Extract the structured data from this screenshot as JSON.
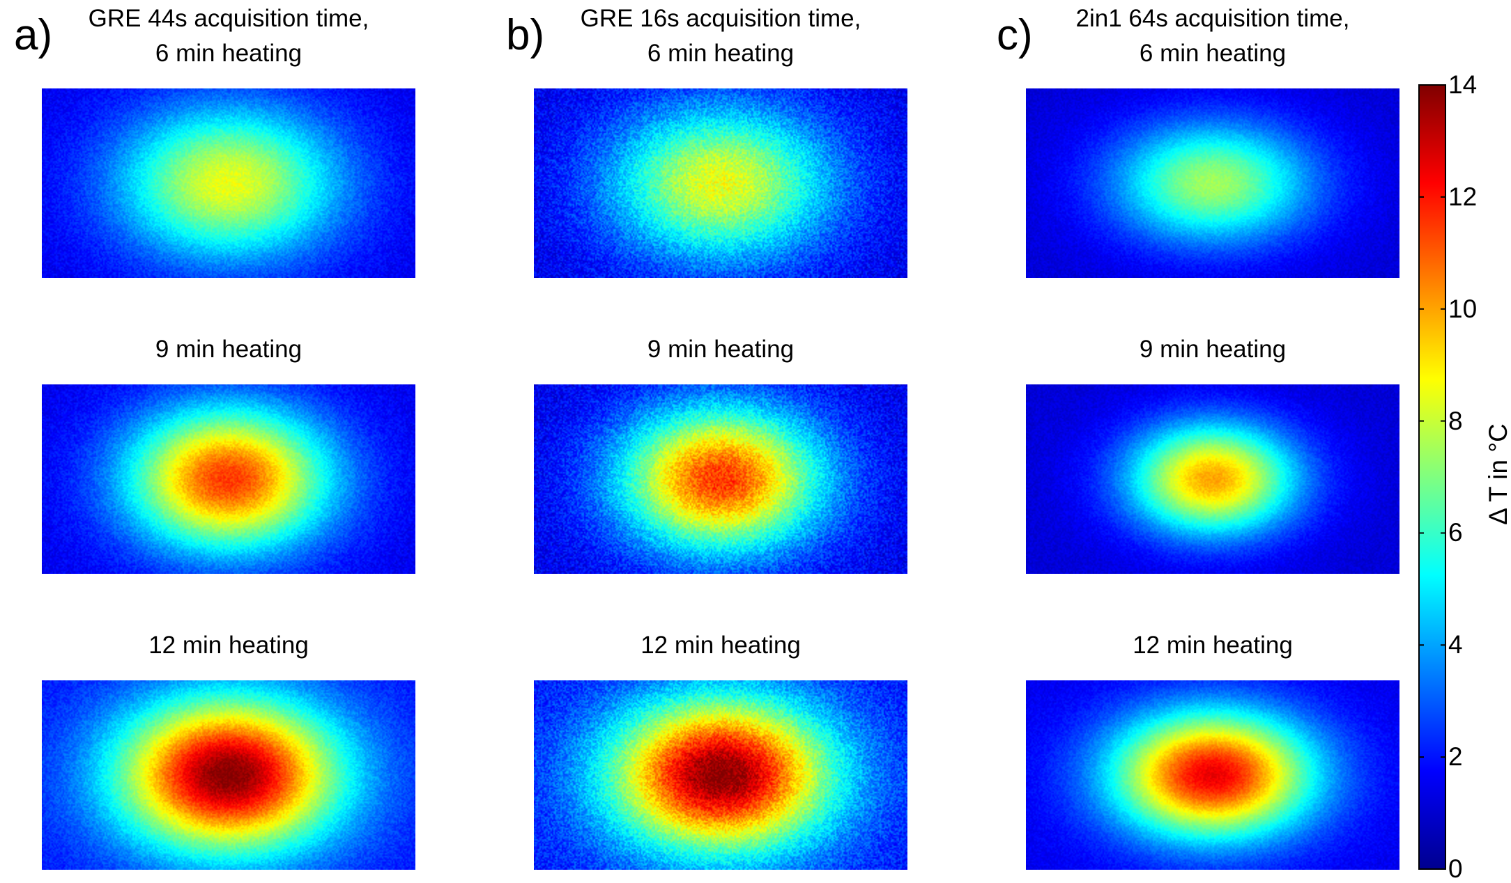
{
  "panels": [
    {
      "letter": "a)",
      "title_line1": "GRE 44s acquisition time,",
      "title_line2": "6 min heating",
      "row2_title": "9 min heating",
      "row3_title": "12 min heating"
    },
    {
      "letter": "b)",
      "title_line1": "GRE 16s acquisition time,",
      "title_line2": "6 min heating",
      "row2_title": "9 min heating",
      "row3_title": "12 min heating"
    },
    {
      "letter": "c)",
      "title_line1": "2in1 64s acquisition time,",
      "title_line2": "6 min heating",
      "row2_title": "9 min heating",
      "row3_title": "12 min heating"
    }
  ],
  "chart_data": {
    "type": "heatmap",
    "colormap": "jet",
    "colorbar": {
      "label": "Δ T in °C",
      "range": [
        0,
        14
      ],
      "ticks": [
        0,
        2,
        4,
        6,
        8,
        10,
        12,
        14
      ],
      "tick_labels": [
        "0",
        "2",
        "4",
        "6",
        "8",
        "10",
        "12",
        "14"
      ]
    },
    "maps": [
      {
        "method": "GRE 44s",
        "heating": "6 min heating",
        "peak_delta_T": 8.5,
        "edge_delta_T": 1.5,
        "spread_x": 0.55,
        "spread_y": 0.75,
        "noise": 0.5
      },
      {
        "method": "GRE 44s",
        "heating": "9 min heating",
        "peak_delta_T": 11.5,
        "edge_delta_T": 1.5,
        "spread_x": 0.5,
        "spread_y": 0.7,
        "noise": 0.5
      },
      {
        "method": "GRE 44s",
        "heating": "12 min heating",
        "peak_delta_T": 14,
        "edge_delta_T": 2.0,
        "spread_x": 0.55,
        "spread_y": 0.75,
        "noise": 0.5
      },
      {
        "method": "GRE 16s",
        "heating": "6 min heating",
        "peak_delta_T": 8.5,
        "edge_delta_T": 1.5,
        "spread_x": 0.55,
        "spread_y": 0.75,
        "noise": 0.9
      },
      {
        "method": "GRE 16s",
        "heating": "9 min heating",
        "peak_delta_T": 11.5,
        "edge_delta_T": 1.5,
        "spread_x": 0.5,
        "spread_y": 0.7,
        "noise": 0.9
      },
      {
        "method": "GRE 16s",
        "heating": "12 min heating",
        "peak_delta_T": 14,
        "edge_delta_T": 2.0,
        "spread_x": 0.55,
        "spread_y": 0.75,
        "noise": 0.9
      },
      {
        "method": "2in1 64s",
        "heating": "6 min heating",
        "peak_delta_T": 7.5,
        "edge_delta_T": 1.2,
        "spread_x": 0.5,
        "spread_y": 0.6,
        "noise": 0.35
      },
      {
        "method": "2in1 64s",
        "heating": "9 min heating",
        "peak_delta_T": 10,
        "edge_delta_T": 1.2,
        "spread_x": 0.42,
        "spread_y": 0.55,
        "noise": 0.35
      },
      {
        "method": "2in1 64s",
        "heating": "12 min heating",
        "peak_delta_T": 12.5,
        "edge_delta_T": 1.5,
        "spread_x": 0.5,
        "spread_y": 0.62,
        "noise": 0.35
      }
    ]
  }
}
